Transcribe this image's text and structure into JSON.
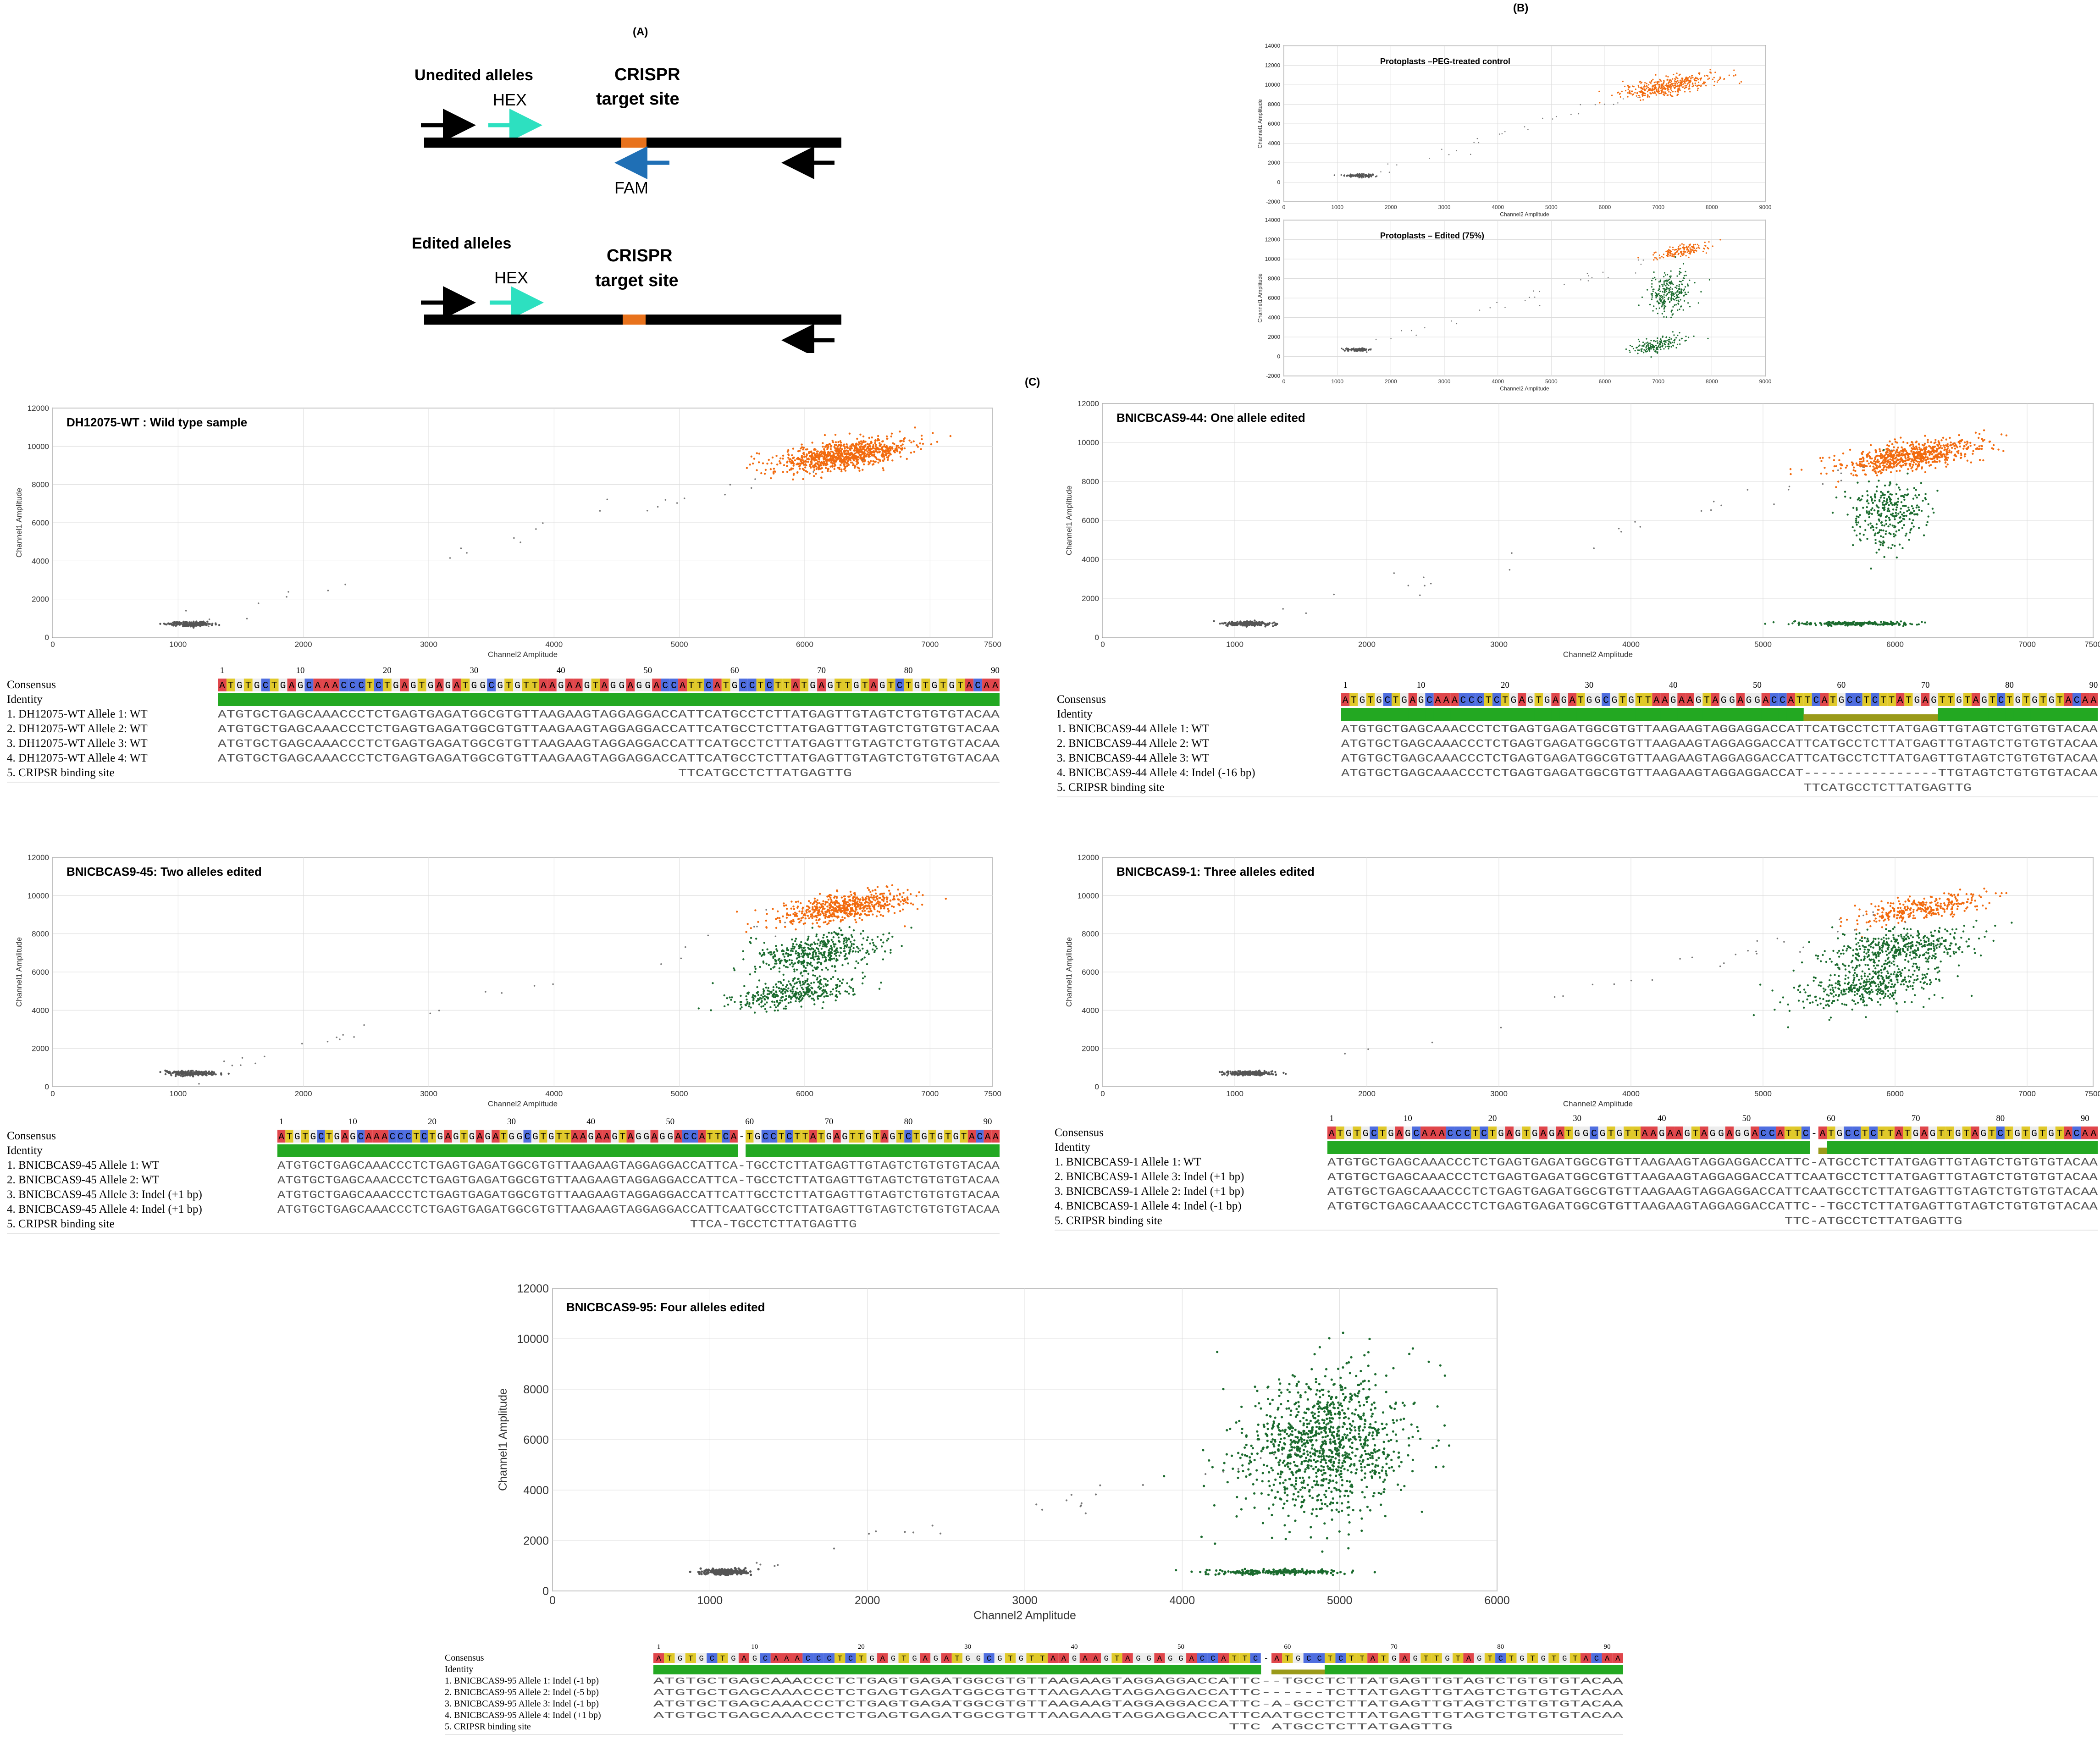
{
  "panel_labels": {
    "A": "(A)",
    "B": "(B)",
    "C": "(C)"
  },
  "diagram": {
    "unedited_title": "Unedited alleles",
    "edited_title": "Edited alleles",
    "hex": "HEX",
    "fam": "FAM",
    "crispr": "CRISPR",
    "target_site": "target site",
    "colors": {
      "hex_arrow": "#2de0c0",
      "fam_arrow": "#1f6fb5",
      "target": "#e8721c",
      "line": "#000000"
    }
  },
  "colors": {
    "orange": "#f26b0f",
    "green": "#1b6b2e",
    "gray": "#555555",
    "identity_green": "#23a822",
    "identity_olive": "#9a9a1a"
  },
  "chart_data": [
    {
      "id": "b_control",
      "type": "scatter",
      "title": "Protoplasts –PEG-treated control",
      "xlabel": "Channel2 Amplitude",
      "ylabel": "Channel1 Amplitude",
      "xlim": [
        0,
        9000
      ],
      "ylim": [
        -2000,
        14000
      ],
      "xticks": [
        0,
        1000,
        2000,
        3000,
        4000,
        5000,
        6000,
        7000,
        8000,
        9000
      ],
      "yticks": [
        -2000,
        0,
        2000,
        4000,
        6000,
        8000,
        10000,
        12000,
        14000
      ],
      "clusters": [
        {
          "name": "gray",
          "cx": 1400,
          "cy": 700,
          "sx": 130,
          "sy": 80,
          "n": 160
        },
        {
          "name": "orange",
          "cx": 7200,
          "cy": 9900,
          "sx": 450,
          "sy": 450,
          "n": 420
        }
      ]
    },
    {
      "id": "b_edited",
      "type": "scatter",
      "title": "Protoplasts – Edited (75%)",
      "xlabel": "Channel2 Amplitude",
      "ylabel": "Channel1 Amplitude",
      "xlim": [
        0,
        9000
      ],
      "ylim": [
        -2000,
        14000
      ],
      "xticks": [
        0,
        1000,
        2000,
        3000,
        4000,
        5000,
        6000,
        7000,
        8000,
        9000
      ],
      "yticks": [
        -2000,
        0,
        2000,
        4000,
        6000,
        8000,
        10000,
        12000,
        14000
      ],
      "clusters": [
        {
          "name": "gray",
          "cx": 1400,
          "cy": 700,
          "sx": 120,
          "sy": 70,
          "n": 150
        },
        {
          "name": "orange",
          "cx": 7400,
          "cy": 10800,
          "sx": 250,
          "sy": 300,
          "n": 160
        },
        {
          "name": "green",
          "cx": 7200,
          "cy": 6500,
          "sx": 200,
          "sy": 1100,
          "n": 260
        },
        {
          "name": "green",
          "cx": 7000,
          "cy": 1200,
          "sx": 250,
          "sy": 350,
          "n": 160
        }
      ]
    },
    {
      "id": "c_wt",
      "type": "scatter",
      "title": "DH12075-WT : Wild type sample",
      "xlabel": "Channel2 Amplitude",
      "ylabel": "Channel1 Amplitude",
      "xlim": [
        0,
        7500
      ],
      "ylim": [
        0,
        12000
      ],
      "xticks": [
        0,
        1000,
        2000,
        3000,
        4000,
        5000,
        6000,
        7000,
        7500
      ],
      "yticks": [
        0,
        2000,
        4000,
        6000,
        8000,
        10000,
        12000
      ],
      "clusters": [
        {
          "name": "gray",
          "cx": 1100,
          "cy": 700,
          "sx": 90,
          "sy": 60,
          "n": 220
        },
        {
          "name": "orange",
          "cx": 6300,
          "cy": 9500,
          "sx": 260,
          "sy": 350,
          "n": 900
        }
      ]
    },
    {
      "id": "c_44",
      "type": "scatter",
      "title": "BNICBCAS9-44: One allele edited",
      "xlabel": "Channel2 Amplitude",
      "ylabel": "Channel1 Amplitude",
      "xlim": [
        0,
        7500
      ],
      "ylim": [
        0,
        12000
      ],
      "xticks": [
        0,
        1000,
        2000,
        3000,
        4000,
        5000,
        6000,
        7000,
        7500
      ],
      "yticks": [
        0,
        2000,
        4000,
        6000,
        8000,
        10000,
        12000
      ],
      "clusters": [
        {
          "name": "gray",
          "cx": 1100,
          "cy": 700,
          "sx": 90,
          "sy": 60,
          "n": 220
        },
        {
          "name": "orange",
          "cx": 6100,
          "cy": 9300,
          "sx": 280,
          "sy": 350,
          "n": 700
        },
        {
          "name": "green",
          "cx": 5950,
          "cy": 6300,
          "sx": 150,
          "sy": 900,
          "n": 300
        },
        {
          "name": "green",
          "cx": 5700,
          "cy": 700,
          "sx": 220,
          "sy": 50,
          "n": 250
        }
      ]
    },
    {
      "id": "c_45",
      "type": "scatter",
      "title": "BNICBCAS9-45: Two alleles edited",
      "xlabel": "Channel2 Amplitude",
      "ylabel": "Channel1 Amplitude",
      "xlim": [
        0,
        7500
      ],
      "ylim": [
        0,
        12000
      ],
      "xticks": [
        0,
        1000,
        2000,
        3000,
        4000,
        5000,
        6000,
        7000,
        7500
      ],
      "yticks": [
        0,
        2000,
        4000,
        6000,
        8000,
        10000,
        12000
      ],
      "clusters": [
        {
          "name": "gray",
          "cx": 1100,
          "cy": 700,
          "sx": 90,
          "sy": 60,
          "n": 220
        },
        {
          "name": "orange",
          "cx": 6300,
          "cy": 9400,
          "sx": 270,
          "sy": 350,
          "n": 600
        },
        {
          "name": "green",
          "cx": 6100,
          "cy": 7000,
          "sx": 250,
          "sy": 500,
          "n": 450
        },
        {
          "name": "green",
          "cx": 5900,
          "cy": 4900,
          "sx": 250,
          "sy": 350,
          "n": 350
        }
      ]
    },
    {
      "id": "c_1",
      "type": "scatter",
      "title": "BNICBCAS9-1: Three alleles edited",
      "xlabel": "Channel2 Amplitude",
      "ylabel": "Channel1 Amplitude",
      "xlim": [
        0,
        7500
      ],
      "ylim": [
        0,
        12000
      ],
      "xticks": [
        0,
        1000,
        2000,
        3000,
        4000,
        5000,
        6000,
        7000,
        7500
      ],
      "yticks": [
        0,
        2000,
        4000,
        6000,
        8000,
        10000,
        12000
      ],
      "clusters": [
        {
          "name": "gray",
          "cx": 1100,
          "cy": 700,
          "sx": 90,
          "sy": 60,
          "n": 220
        },
        {
          "name": "orange",
          "cx": 6200,
          "cy": 9300,
          "sx": 250,
          "sy": 300,
          "n": 300
        },
        {
          "name": "green",
          "cx": 6000,
          "cy": 7200,
          "sx": 280,
          "sy": 500,
          "n": 450
        },
        {
          "name": "green",
          "cx": 5800,
          "cy": 5200,
          "sx": 280,
          "sy": 500,
          "n": 400
        }
      ]
    },
    {
      "id": "c_95",
      "type": "scatter",
      "title": "BNICBCAS9-95: Four alleles edited",
      "xlabel": "Channel2 Amplitude",
      "ylabel": "Channel1 Amplitude",
      "xlim": [
        0,
        6000
      ],
      "ylim": [
        0,
        12000
      ],
      "xticks": [
        0,
        1000,
        2000,
        3000,
        4000,
        5000,
        6000
      ],
      "yticks": [
        0,
        2000,
        4000,
        6000,
        8000,
        10000,
        12000
      ],
      "clusters": [
        {
          "name": "gray",
          "cx": 1100,
          "cy": 750,
          "sx": 80,
          "sy": 60,
          "n": 220
        },
        {
          "name": "green",
          "cx": 4900,
          "cy": 5800,
          "sx": 260,
          "sy": 1400,
          "n": 1100
        },
        {
          "name": "green",
          "cx": 4600,
          "cy": 750,
          "sx": 220,
          "sy": 50,
          "n": 220
        }
      ]
    }
  ],
  "alignments": [
    {
      "id": "wt",
      "ruler": [
        "1",
        "10",
        "20",
        "30",
        "40",
        "50",
        "60",
        "70",
        "80",
        "90"
      ],
      "rows": [
        {
          "label": "Consensus",
          "seq": "ATGTGCTGAGCAAACCCTCTGAGTGAGATGGCGTGTTAAGAAGTAGGAGGACCATTCATGCCTCTTATGAGTTGTAGTCTGTGTGTACAA"
        },
        {
          "label": "Identity",
          "seq": ""
        },
        {
          "label": "1. DH12075-WT Allele 1: WT",
          "seq": "ATGTGCTGAGCAAACCCTCTGAGTGAGATGGCGTGTTAAGAAGTAGGAGGACCATTCATGCCTCTTATGAGTTGTAGTCTGTGTGTACAA"
        },
        {
          "label": "2. DH12075-WT Allele 2: WT",
          "seq": "ATGTGCTGAGCAAACCCTCTGAGTGAGATGGCGTGTTAAGAAGTAGGAGGACCATTCATGCCTCTTATGAGTTGTAGTCTGTGTGTACAA"
        },
        {
          "label": "3. DH12075-WT Allele 3: WT",
          "seq": "ATGTGCTGAGCAAACCCTCTGAGTGAGATGGCGTGTTAAGAAGTAGGAGGACCATTCATGCCTCTTATGAGTTGTAGTCTGTGTGTACAA"
        },
        {
          "label": "4. DH12075-WT Allele 4: WT",
          "seq": "ATGTGCTGAGCAAACCCTCTGAGTGAGATGGCGTGTTAAGAAGTAGGAGGACCATTCATGCCTCTTATGAGTTGTAGTCTGTGTGTACAA"
        },
        {
          "label": "5. CRIPSR binding site",
          "seq": "                                                     TTCATGCCTCTTATGAGTTG"
        }
      ]
    },
    {
      "id": "44",
      "ruler": [
        "1",
        "10",
        "20",
        "30",
        "40",
        "50",
        "60",
        "70",
        "80",
        "90"
      ],
      "rows": [
        {
          "label": "Consensus",
          "seq": "ATGTGCTGAGCAAACCCTCTGAGTGAGATGGCGTGTTAAGAAGTAGGAGGACCATTCATGCCTCTTATGAGTTGTAGTCTGTGTGTACAA"
        },
        {
          "label": "Identity",
          "seq": ""
        },
        {
          "label": "1. BNICBCAS9-44 Allele 1: WT",
          "seq": "ATGTGCTGAGCAAACCCTCTGAGTGAGATGGCGTGTTAAGAAGTAGGAGGACCATTCATGCCTCTTATGAGTTGTAGTCTGTGTGTACAA"
        },
        {
          "label": "2. BNICBCAS9-44 Allele 2: WT",
          "seq": "ATGTGCTGAGCAAACCCTCTGAGTGAGATGGCGTGTTAAGAAGTAGGAGGACCATTCATGCCTCTTATGAGTTGTAGTCTGTGTGTACAA"
        },
        {
          "label": "3. BNICBCAS9-44 Allele 3: WT",
          "seq": "ATGTGCTGAGCAAACCCTCTGAGTGAGATGGCGTGTTAAGAAGTAGGAGGACCATTCATGCCTCTTATGAGTTGTAGTCTGTGTGTACAA"
        },
        {
          "label": "4. BNICBCAS9-44 Allele 4: Indel (-16 bp)",
          "seq": "ATGTGCTGAGCAAACCCTCTGAGTGAGATGGCGTGTTAAGAAGTAGGAGGACCAT----------------TTGTAGTCTGTGTGTACAA"
        },
        {
          "label": "5. CRIPSR binding site",
          "seq": "                                                       TTCATGCCTCTTATGAGTTG"
        }
      ]
    },
    {
      "id": "45",
      "ruler": [
        "1",
        "10",
        "20",
        "30",
        "40",
        "50",
        "60",
        "70",
        "80",
        "90"
      ],
      "rows": [
        {
          "label": "Consensus",
          "seq": "ATGTGCTGAGCAAACCCTCTGAGTGAGATGGCGTGTTAAGAAGTAGGAGGACCATTCA-TGCCTCTTATGAGTTGTAGTCTGTGTGTACAA"
        },
        {
          "label": "Identity",
          "seq": ""
        },
        {
          "label": "1. BNICBCAS9-45 Allele 1: WT",
          "seq": "ATGTGCTGAGCAAACCCTCTGAGTGAGATGGCGTGTTAAGAAGTAGGAGGACCATTCA-TGCCTCTTATGAGTTGTAGTCTGTGTGTACAA"
        },
        {
          "label": "2. BNICBCAS9-45 Allele 2: WT",
          "seq": "ATGTGCTGAGCAAACCCTCTGAGTGAGATGGCGTGTTAAGAAGTAGGAGGACCATTCA-TGCCTCTTATGAGTTGTAGTCTGTGTGTACAA"
        },
        {
          "label": "3. BNICBCAS9-45 Allele 3: Indel (+1 bp)",
          "seq": "ATGTGCTGAGCAAACCCTCTGAGTGAGATGGCGTGTTAAGAAGTAGGAGGACCATTCATTGCCTCTTATGAGTTGTAGTCTGTGTGTACAA"
        },
        {
          "label": "4. BNICBCAS9-45 Allele 4: Indel (+1 bp)",
          "seq": "ATGTGCTGAGCAAACCCTCTGAGTGAGATGGCGTGTTAAGAAGTAGGAGGACCATTCAATGCCTCTTATGAGTTGTAGTCTGTGTGTACAA"
        },
        {
          "label": "5. CRIPSR binding site",
          "seq": "                                                    TTCA-TGCCTCTTATGAGTTG"
        }
      ]
    },
    {
      "id": "1",
      "ruler": [
        "1",
        "10",
        "20",
        "30",
        "40",
        "50",
        "60",
        "70",
        "80",
        "90"
      ],
      "rows": [
        {
          "label": "Consensus",
          "seq": "ATGTGCTGAGCAAACCCTCTGAGTGAGATGGCGTGTTAAGAAGTAGGAGGACCATTC-ATGCCTCTTATGAGTTGTAGTCTGTGTGTACAA"
        },
        {
          "label": "Identity",
          "seq": ""
        },
        {
          "label": "1. BNICBCAS9-1 Allele 1: WT",
          "seq": "ATGTGCTGAGCAAACCCTCTGAGTGAGATGGCGTGTTAAGAAGTAGGAGGACCATTC-ATGCCTCTTATGAGTTGTAGTCTGTGTGTACAA"
        },
        {
          "label": "2. BNICBCAS9-1 Allele 3: Indel (+1 bp)",
          "seq": "ATGTGCTGAGCAAACCCTCTGAGTGAGATGGCGTGTTAAGAAGTAGGAGGACCATTCAATGCCTCTTATGAGTTGTAGTCTGTGTGTACAA"
        },
        {
          "label": "3. BNICBCAS9-1 Allele 2: Indel (+1 bp)",
          "seq": "ATGTGCTGAGCAAACCCTCTGAGTGAGATGGCGTGTTAAGAAGTAGGAGGACCATTCAATGCCTCTTATGAGTTGTAGTCTGTGTGTACAA"
        },
        {
          "label": "4. BNICBCAS9-1 Allele 4: Indel (-1 bp)",
          "seq": "ATGTGCTGAGCAAACCCTCTGAGTGAGATGGCGTGTTAAGAAGTAGGAGGACCATTC--TGCCTCTTATGAGTTGTAGTCTGTGTGTACAA"
        },
        {
          "label": "5. CRIPSR binding site",
          "seq": "                                                      TTC-ATGCCTCTTATGAGTTG"
        }
      ]
    },
    {
      "id": "95",
      "ruler": [
        "1",
        "10",
        "20",
        "30",
        "40",
        "50",
        "60",
        "70",
        "80",
        "90"
      ],
      "rows": [
        {
          "label": "Consensus",
          "seq": "ATGTGCTGAGCAAACCCTCTGAGTGAGATGGCGTGTTAAGAAGTAGGAGGACCATTC-ATGCCTCTTATGAGTTGTAGTCTGTGTGTACAA"
        },
        {
          "label": "Identity",
          "seq": ""
        },
        {
          "label": "1. BNICBCAS9-95 Allele 1: Indel (-1 bp)",
          "seq": "ATGTGCTGAGCAAACCCTCTGAGTGAGATGGCGTGTTAAGAAGTAGGAGGACCATTC--TGCCTCTTATGAGTTGTAGTCTGTGTGTACAA"
        },
        {
          "label": "2. BNICBCAS9-95 Allele 2: Indel (-5 bp)",
          "seq": "ATGTGCTGAGCAAACCCTCTGAGTGAGATGGCGTGTTAAGAAGTAGGAGGACCATTC------TCTTATGAGTTGTAGTCTGTGTGTACAA"
        },
        {
          "label": "3. BNICBCAS9-95 Allele 3: Indel (-1 bp)",
          "seq": "ATGTGCTGAGCAAACCCTCTGAGTGAGATGGCGTGTTAAGAAGTAGGAGGACCATTC-A-GCCTCTTATGAGTTGTAGTCTGTGTGTACAA"
        },
        {
          "label": "4. BNICBCAS9-95 Allele 4: Indel (+1 bp)",
          "seq": "ATGTGCTGAGCAAACCCTCTGAGTGAGATGGCGTGTTAAGAAGTAGGAGGACCATTCAATGCCTCTTATGAGTTGTAGTCTGTGTGTACAA"
        },
        {
          "label": "5. CRIPSR binding site",
          "seq": "                                                      TTC ATGCCTCTTATGAGTTG"
        }
      ]
    }
  ]
}
